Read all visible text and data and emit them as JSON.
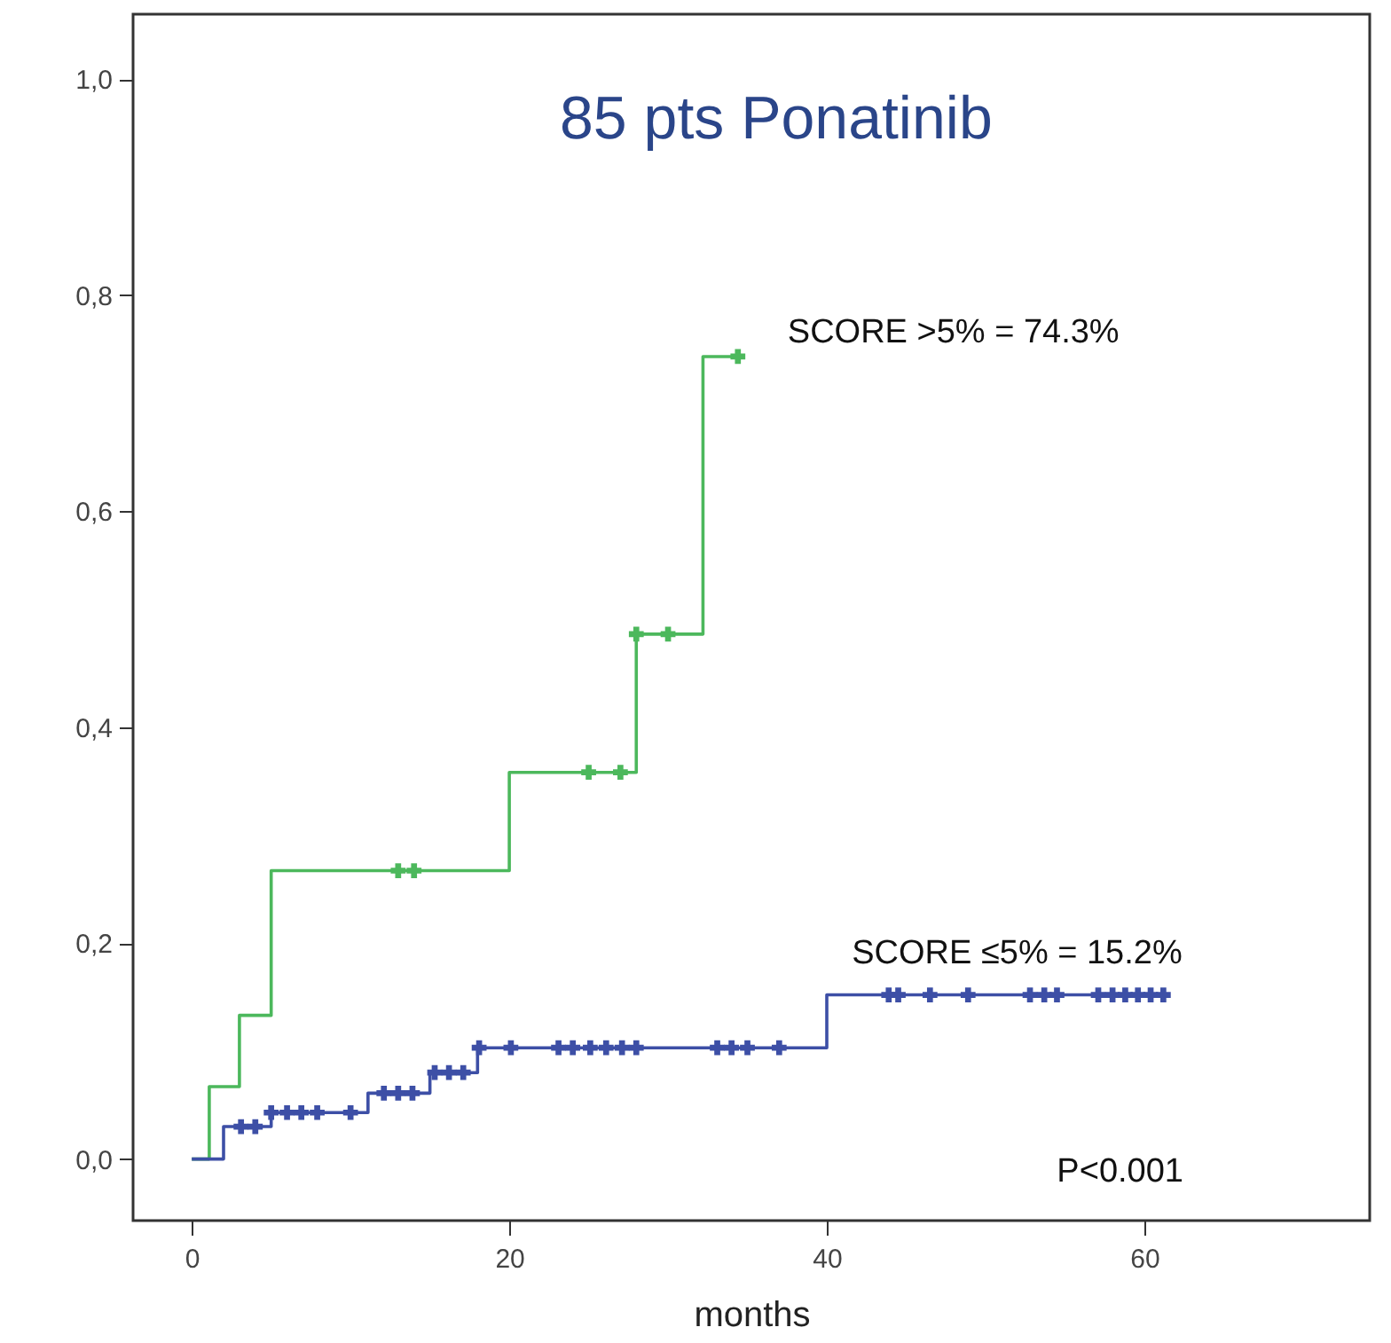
{
  "chart_data": {
    "type": "step",
    "title": "85 pts Ponatinib",
    "xlabel": "months",
    "xlim": [
      -3.7,
      74.2
    ],
    "xticks": [
      0,
      20,
      40,
      60
    ],
    "ylim": [
      -0.057,
      1.06
    ],
    "yticks": [
      {
        "value": 0,
        "label": "0,0"
      },
      {
        "value": 0.2,
        "label": "0,2"
      },
      {
        "value": 0.4,
        "label": "0,4"
      },
      {
        "value": 0.6,
        "label": "0,6"
      },
      {
        "value": 0.8,
        "label": "0,8"
      },
      {
        "value": 1,
        "label": "1,0"
      }
    ],
    "annotations": [
      "P<0.001"
    ],
    "series": [
      {
        "name": "SCORE >5% = 74.3%",
        "color": "#4cb85c",
        "x": [
          0,
          1.1,
          3,
          5,
          20,
          28,
          32.2,
          34.4
        ],
        "values": [
          0,
          0.067,
          0.133,
          0.267,
          0.358,
          0.486,
          0.743,
          0.743
        ]
      },
      {
        "name": "SCORE ≤5% = 15.2%",
        "color": "#3d4fa6",
        "x": [
          0,
          2,
          5,
          11.1,
          15,
          18,
          40,
          61.5
        ],
        "values": [
          0,
          0.03,
          0.043,
          0.061,
          0.08,
          0.103,
          0.152,
          0.152
        ]
      },
      {
        "type": "scatter",
        "marker": "cross",
        "color": "#4cb85c",
        "x": [
          13,
          14,
          25,
          27,
          28,
          30,
          34.4
        ],
        "values": [
          0.267,
          0.267,
          0.358,
          0.358,
          0.486,
          0.486,
          0.743
        ]
      },
      {
        "type": "scatter",
        "marker": "cross",
        "color": "#3d4fa6",
        "x": [
          3.1,
          4,
          5,
          6,
          6.9,
          7.9,
          10,
          12.1,
          13,
          13.9,
          15.3,
          16.2,
          17.1,
          18.1,
          20.1,
          23.1,
          24,
          25.1,
          26.1,
          27.1,
          28,
          33.1,
          34,
          35,
          37,
          43.9,
          44.5,
          46.5,
          48.9,
          52.8,
          53.7,
          54.5,
          57.1,
          58,
          58.8,
          59.6,
          60.4,
          61.2
        ],
        "values": [
          0.03,
          0.03,
          0.043,
          0.043,
          0.043,
          0.043,
          0.043,
          0.061,
          0.061,
          0.061,
          0.08,
          0.08,
          0.08,
          0.103,
          0.103,
          0.103,
          0.103,
          0.103,
          0.103,
          0.103,
          0.103,
          0.103,
          0.103,
          0.103,
          0.103,
          0.152,
          0.152,
          0.152,
          0.152,
          0.152,
          0.152,
          0.152,
          0.152,
          0.152,
          0.152,
          0.152,
          0.152,
          0.152
        ]
      }
    ]
  }
}
